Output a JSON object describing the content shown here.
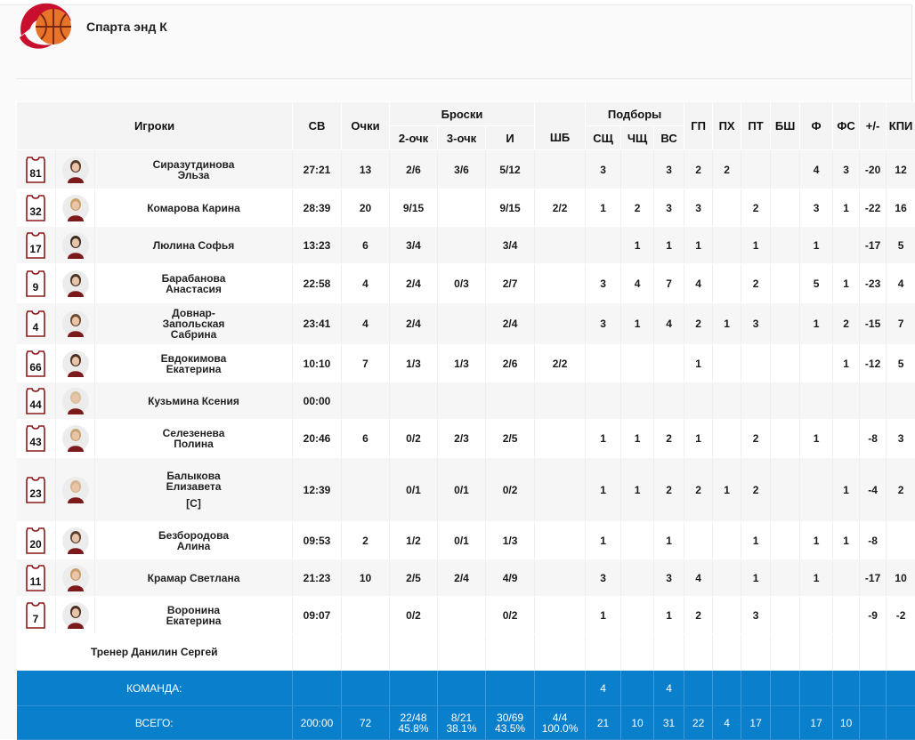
{
  "team": {
    "name": "Спарта энд К"
  },
  "headers": {
    "players": "Игроки",
    "sv": "СВ",
    "points": "Очки",
    "shots": "Броски",
    "two": "2-очк",
    "three": "3-очк",
    "i": "И",
    "ft": "ШБ",
    "rebounds": "Подборы",
    "off": "СЩ",
    "def": "ЧЩ",
    "tot": "ВС",
    "ast": "ГП",
    "tov": "ПХ",
    "stl": "ПТ",
    "blk": "БШ",
    "pf": "Ф",
    "fd": "ФС",
    "pm": "+/-",
    "eff": "КПИ"
  },
  "players": [
    {
      "num": "81",
      "name": [
        "Сиразутдинова",
        "Эльза"
      ],
      "sv": "27:21",
      "pts": "13",
      "two": "2/6",
      "three": "3/6",
      "i": "5/12",
      "ft": "",
      "off": "3",
      "def": "",
      "tot": "3",
      "ast": "2",
      "tov": "2",
      "stl": "",
      "blk": "",
      "pf": "4",
      "fd": "3",
      "pm": "-20",
      "eff": "12",
      "hair": "#5a3a2a"
    },
    {
      "num": "32",
      "name": [
        "Комарова Карина"
      ],
      "sv": "28:39",
      "pts": "20",
      "two": "9/15",
      "three": "",
      "i": "9/15",
      "ft": "2/2",
      "off": "1",
      "def": "2",
      "tot": "3",
      "ast": "3",
      "tov": "",
      "stl": "2",
      "blk": "",
      "pf": "3",
      "fd": "1",
      "pm": "-22",
      "eff": "16",
      "hair": "#c9a06a"
    },
    {
      "num": "17",
      "name": [
        "Люлина Софья"
      ],
      "sv": "13:23",
      "pts": "6",
      "two": "3/4",
      "three": "",
      "i": "3/4",
      "ft": "",
      "off": "",
      "def": "1",
      "tot": "1",
      "ast": "1",
      "tov": "",
      "stl": "1",
      "blk": "",
      "pf": "1",
      "fd": "",
      "pm": "-17",
      "eff": "5",
      "hair": "#3b2a20"
    },
    {
      "num": "9",
      "name": [
        "Барабанова",
        "Анастасия"
      ],
      "sv": "22:58",
      "pts": "4",
      "two": "2/4",
      "three": "0/3",
      "i": "2/7",
      "ft": "",
      "off": "3",
      "def": "4",
      "tot": "7",
      "ast": "4",
      "tov": "",
      "stl": "2",
      "blk": "",
      "pf": "5",
      "fd": "1",
      "pm": "-23",
      "eff": "4",
      "hair": "#4a3426"
    },
    {
      "num": "4",
      "name": [
        "Довнар-",
        "Запольская",
        "Сабрина"
      ],
      "sv": "23:41",
      "pts": "4",
      "two": "2/4",
      "three": "",
      "i": "2/4",
      "ft": "",
      "off": "3",
      "def": "1",
      "tot": "4",
      "ast": "2",
      "tov": "1",
      "stl": "3",
      "blk": "",
      "pf": "1",
      "fd": "2",
      "pm": "-15",
      "eff": "7",
      "hair": "#6b4a30"
    },
    {
      "num": "66",
      "name": [
        "Евдокимова",
        "Екатерина"
      ],
      "sv": "10:10",
      "pts": "7",
      "two": "1/3",
      "three": "1/3",
      "i": "2/6",
      "ft": "2/2",
      "off": "",
      "def": "",
      "tot": "",
      "ast": "1",
      "tov": "",
      "stl": "",
      "blk": "",
      "pf": "",
      "fd": "1",
      "pm": "-12",
      "eff": "5",
      "hair": "#4a2e22"
    },
    {
      "num": "44",
      "name": [
        "Кузьмина Ксения"
      ],
      "sv": "00:00",
      "pts": "",
      "two": "",
      "three": "",
      "i": "",
      "ft": "",
      "off": "",
      "def": "",
      "tot": "",
      "ast": "",
      "tov": "",
      "stl": "",
      "blk": "",
      "pf": "",
      "fd": "",
      "pm": "",
      "eff": "",
      "hair": "#d6c09a"
    },
    {
      "num": "43",
      "name": [
        "Селезенева",
        "Полина"
      ],
      "sv": "20:46",
      "pts": "6",
      "two": "0/2",
      "three": "2/3",
      "i": "2/5",
      "ft": "",
      "off": "1",
      "def": "1",
      "tot": "2",
      "ast": "1",
      "tov": "",
      "stl": "2",
      "blk": "",
      "pf": "1",
      "fd": "",
      "pm": "-8",
      "eff": "3",
      "hair": "#c8a472"
    },
    {
      "num": "23",
      "name": [
        "Балыкова",
        "Елизавета"
      ],
      "cap": "[C]",
      "sv": "12:39",
      "pts": "",
      "two": "0/1",
      "three": "0/1",
      "i": "0/2",
      "ft": "",
      "off": "1",
      "def": "1",
      "tot": "2",
      "ast": "2",
      "tov": "1",
      "stl": "2",
      "blk": "",
      "pf": "",
      "fd": "1",
      "pm": "-4",
      "eff": "2",
      "hair": "#d2b590"
    },
    {
      "num": "20",
      "name": [
        "Безбородова",
        "Алина"
      ],
      "sv": "09:53",
      "pts": "2",
      "two": "1/2",
      "three": "0/1",
      "i": "1/3",
      "ft": "",
      "off": "1",
      "def": "",
      "tot": "1",
      "ast": "",
      "tov": "",
      "stl": "1",
      "blk": "",
      "pf": "1",
      "fd": "1",
      "pm": "-8",
      "eff": "",
      "hair": "#5a4030"
    },
    {
      "num": "11",
      "name": [
        "Крамар Светлана"
      ],
      "sv": "21:23",
      "pts": "10",
      "two": "2/5",
      "three": "2/4",
      "i": "4/9",
      "ft": "",
      "off": "3",
      "def": "",
      "tot": "3",
      "ast": "4",
      "tov": "",
      "stl": "1",
      "blk": "",
      "pf": "1",
      "fd": "",
      "pm": "-17",
      "eff": "10",
      "hair": "#c89c6a"
    },
    {
      "num": "7",
      "name": [
        "Воронина",
        "Екатерина"
      ],
      "sv": "09:07",
      "pts": "",
      "two": "0/2",
      "three": "",
      "i": "0/2",
      "ft": "",
      "off": "1",
      "def": "",
      "tot": "1",
      "ast": "2",
      "tov": "",
      "stl": "3",
      "blk": "",
      "pf": "",
      "fd": "",
      "pm": "-9",
      "eff": "-2",
      "hair": "#4a2e22"
    }
  ],
  "coach": "Тренер Данилин Сергей",
  "team_row": {
    "label": "КОМАНДА:",
    "off": "4",
    "tot": "4"
  },
  "total_row": {
    "label": "ВСЕГО:",
    "sv": "200:00",
    "pts": "72",
    "two": [
      "22/48",
      "45.8%"
    ],
    "three": [
      "8/21",
      "38.1%"
    ],
    "i": [
      "30/69",
      "43.5%"
    ],
    "ft": [
      "4/4",
      "100.0%"
    ],
    "off": "21",
    "def": "10",
    "tot": "31",
    "ast": "22",
    "tov": "4",
    "stl": "17",
    "blk": "",
    "pf": "17",
    "fd": "10",
    "pm": "",
    "eff": ""
  },
  "colors": {
    "accent_blue": "#0a7fcc",
    "jersey_red": "#8b1a1a",
    "logo_orange": "#e8742a"
  }
}
